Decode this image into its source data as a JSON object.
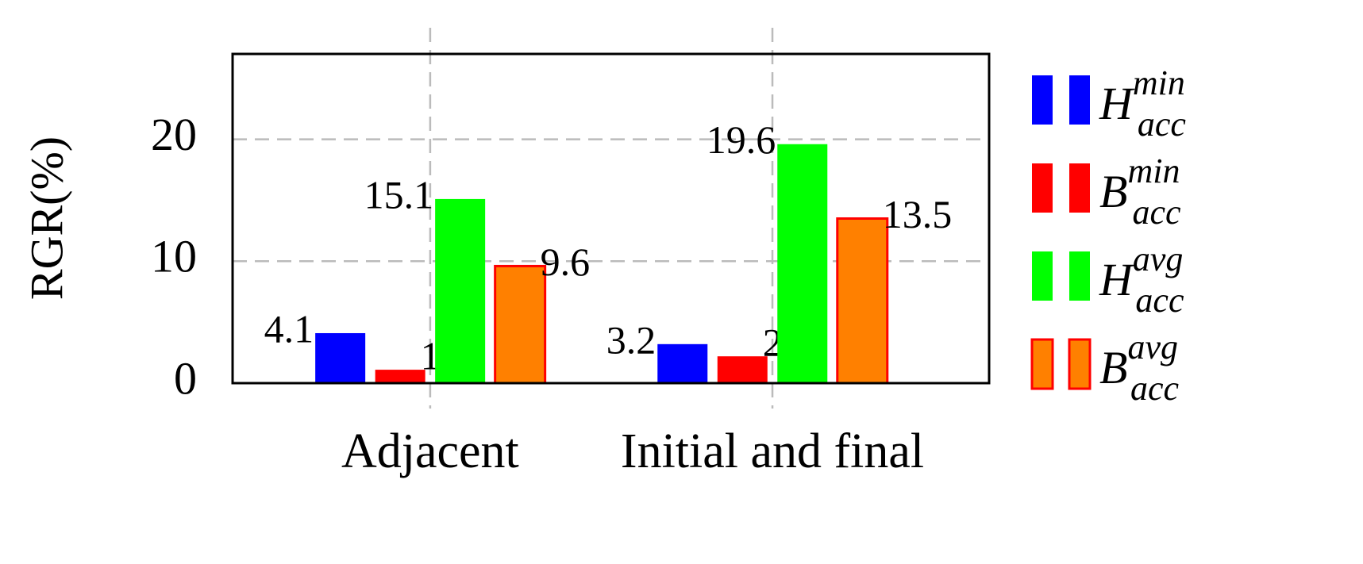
{
  "chart_data": {
    "type": "bar",
    "y_label": "RGR(%)",
    "categories": [
      "Adjacent",
      "Initial and final"
    ],
    "series": [
      {
        "name": "H_{acc}^{min}",
        "color": "#0000ff",
        "values": [
          4.1,
          3.2
        ]
      },
      {
        "name": "B_{acc}^{min}",
        "color": "#ff0000",
        "values": [
          1.1,
          2.2
        ]
      },
      {
        "name": "H_{acc}^{avg}",
        "color": "#00ff00",
        "values": [
          15.1,
          19.6
        ]
      },
      {
        "name": "B_{acc}^{avg}",
        "color": "#ff8000",
        "edge_color": "#ff0000",
        "values": [
          9.6,
          13.5
        ]
      }
    ],
    "ylim": [
      0,
      27
    ],
    "yticks": [
      0,
      10,
      20
    ],
    "grid": true,
    "legend": "right"
  }
}
